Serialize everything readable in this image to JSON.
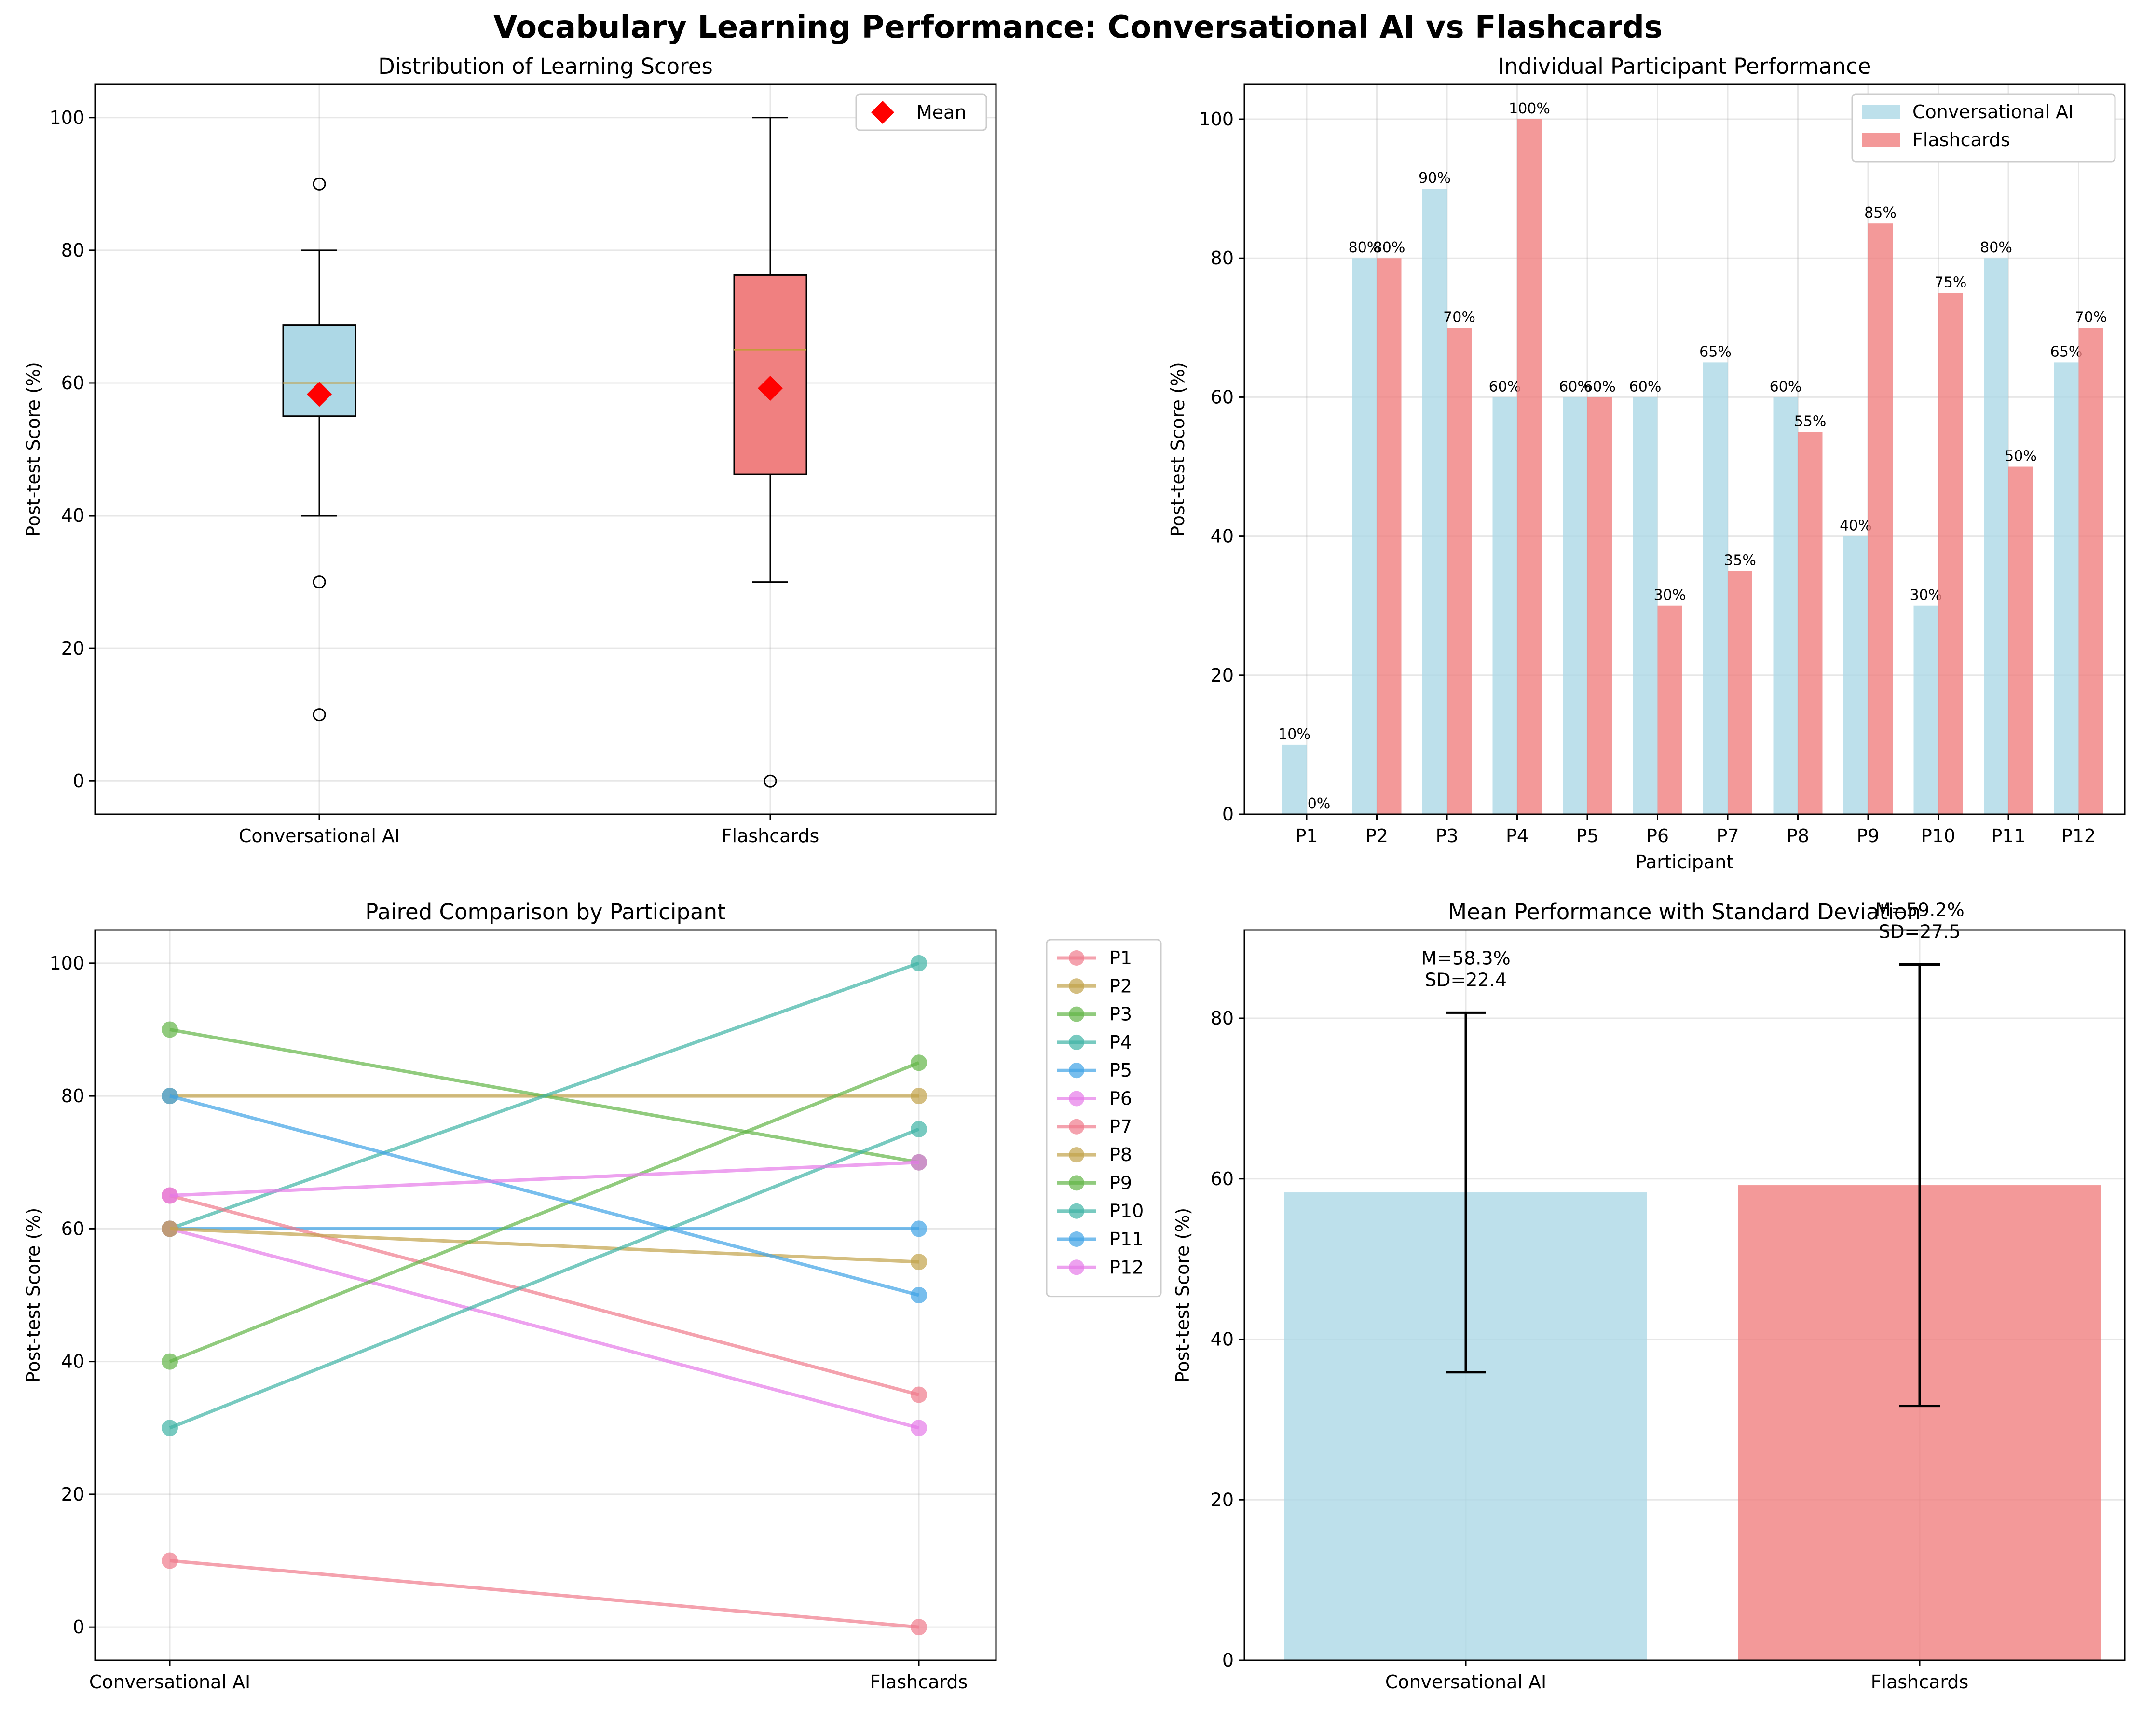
{
  "title": "Vocabulary Learning Performance: Conversational AI vs Flashcards",
  "colors": {
    "ai": "#add8e6",
    "flash": "#f08080",
    "median": "#c49a3a",
    "mean_marker": "#ff0000",
    "participants": [
      "#f07a8c",
      "#c2a24a",
      "#63b547",
      "#3fb3a5",
      "#3fa3e6",
      "#e57ae8",
      "#f07a8c",
      "#c2a24a",
      "#63b547",
      "#3fb3a5",
      "#3fa3e6",
      "#e57ae8"
    ]
  },
  "chart_data": [
    {
      "type": "box",
      "title": "Distribution of Learning Scores",
      "ylabel": "Post-test Score (%)",
      "categories": [
        "Conversational AI",
        "Flashcards"
      ],
      "ylim": [
        -5,
        105
      ],
      "yticks": [
        0,
        20,
        40,
        60,
        80,
        100
      ],
      "grid": true,
      "legend": {
        "placement": "top-right",
        "entries": [
          "Mean"
        ]
      },
      "boxes": [
        {
          "name": "Conversational AI",
          "q1": 55,
          "median": 60,
          "q3": 68.75,
          "whisker_low": 40,
          "whisker_high": 80,
          "outliers": [
            90,
            30,
            10
          ],
          "mean": 58.3
        },
        {
          "name": "Flashcards",
          "q1": 46.25,
          "median": 65,
          "q3": 76.25,
          "whisker_low": 30,
          "whisker_high": 100,
          "outliers": [
            0
          ],
          "mean": 59.2
        }
      ]
    },
    {
      "type": "bar",
      "title": "Individual Participant Performance",
      "xlabel": "Participant",
      "ylabel": "Post-test Score (%)",
      "categories": [
        "P1",
        "P2",
        "P3",
        "P4",
        "P5",
        "P6",
        "P7",
        "P8",
        "P9",
        "P10",
        "P11",
        "P12"
      ],
      "ylim": [
        0,
        105
      ],
      "yticks": [
        0,
        20,
        40,
        60,
        80,
        100
      ],
      "grid": true,
      "legend": {
        "placement": "top-right"
      },
      "series": [
        {
          "name": "Conversational AI",
          "values": [
            10,
            80,
            90,
            60,
            60,
            60,
            65,
            60,
            40,
            30,
            80,
            65
          ]
        },
        {
          "name": "Flashcards",
          "values": [
            0,
            80,
            70,
            100,
            60,
            30,
            35,
            55,
            85,
            75,
            50,
            70
          ]
        }
      ],
      "data_labels": {
        "ai": [
          "10%",
          "80%",
          "90%",
          "60%",
          "60%",
          "60%",
          "65%",
          "60%",
          "40%",
          "30%",
          "80%",
          "65%"
        ],
        "flash": [
          "0%",
          "80%",
          "70%",
          "100%",
          "60%",
          "30%",
          "35%",
          "55%",
          "85%",
          "75%",
          "50%",
          "70%"
        ]
      }
    },
    {
      "type": "line",
      "title": "Paired Comparison by Participant",
      "ylabel": "Post-test Score (%)",
      "categories": [
        "Conversational AI",
        "Flashcards"
      ],
      "ylim": [
        -5,
        105
      ],
      "yticks": [
        0,
        20,
        40,
        60,
        80,
        100
      ],
      "grid": true,
      "legend": {
        "placement": "outside-right"
      },
      "series": [
        {
          "name": "P1",
          "values": [
            10,
            0
          ]
        },
        {
          "name": "P2",
          "values": [
            80,
            80
          ]
        },
        {
          "name": "P3",
          "values": [
            90,
            70
          ]
        },
        {
          "name": "P4",
          "values": [
            60,
            100
          ]
        },
        {
          "name": "P5",
          "values": [
            60,
            60
          ]
        },
        {
          "name": "P6",
          "values": [
            60,
            30
          ]
        },
        {
          "name": "P7",
          "values": [
            65,
            35
          ]
        },
        {
          "name": "P8",
          "values": [
            60,
            55
          ]
        },
        {
          "name": "P9",
          "values": [
            40,
            85
          ]
        },
        {
          "name": "P10",
          "values": [
            30,
            75
          ]
        },
        {
          "name": "P11",
          "values": [
            80,
            50
          ]
        },
        {
          "name": "P12",
          "values": [
            65,
            70
          ]
        }
      ]
    },
    {
      "type": "bar",
      "title": "Mean Performance with Standard Deviation",
      "ylabel": "Post-test Score (%)",
      "categories": [
        "Conversational AI",
        "Flashcards"
      ],
      "ylim": [
        0,
        91
      ],
      "yticks": [
        0,
        20,
        40,
        60,
        80
      ],
      "grid": true,
      "values": [
        58.3,
        59.2
      ],
      "sd": [
        22.4,
        27.5
      ],
      "annotations": [
        {
          "line1": "M=58.3%",
          "line2": "SD=22.4"
        },
        {
          "line1": "M=59.2%",
          "line2": "SD=27.5"
        }
      ]
    }
  ]
}
